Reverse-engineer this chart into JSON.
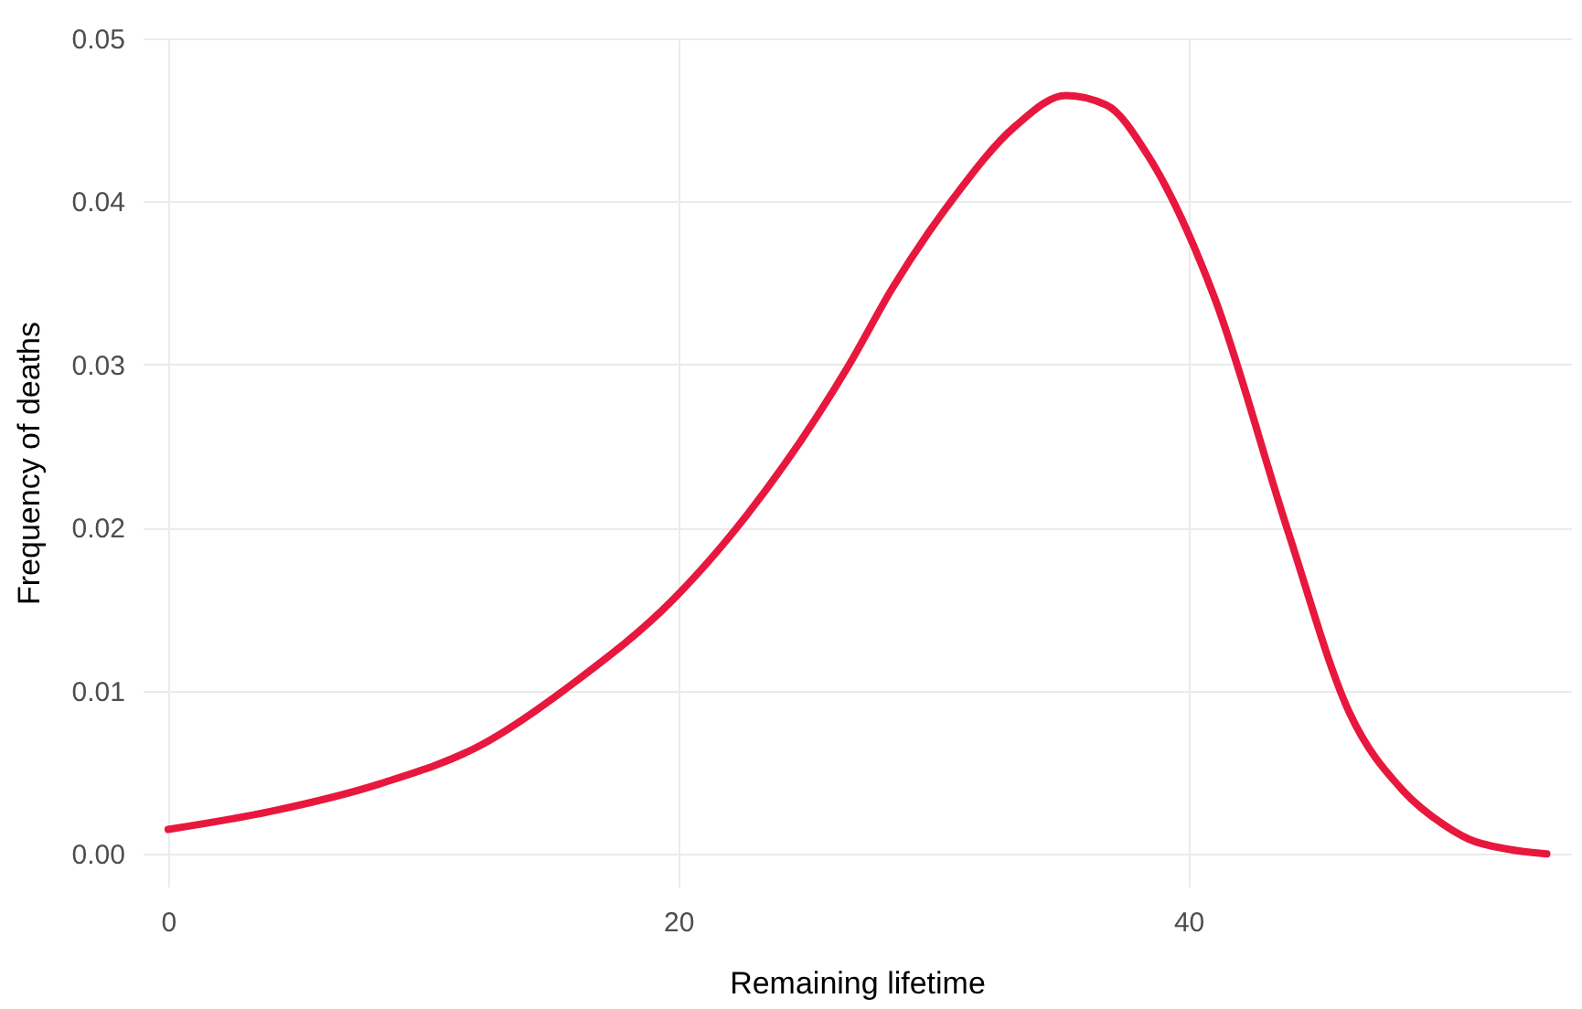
{
  "chart_data": {
    "type": "line",
    "xlabel": "Remaining lifetime",
    "ylabel": "Frequency of deaths",
    "series": [
      {
        "color": "#e8173d",
        "x": [
          0,
          4,
          8.3,
          12.3,
          16,
          19.8,
          22.7,
          26.7,
          28.4,
          30.74,
          33.2,
          35.2,
          36.8,
          38.38,
          41.0,
          43.9,
          46.3,
          48.4,
          50,
          51.0,
          52.5,
          54.05
        ],
        "values": [
          0.0015,
          0.0026,
          0.0043,
          0.0067,
          0.0106,
          0.0156,
          0.0208,
          0.03,
          0.0347,
          0.0401,
          0.0446,
          0.0465,
          0.0459,
          0.0429,
          0.0342,
          0.0198,
          0.0087,
          0.0039,
          0.0018,
          0.0009,
          0.0003,
          0.0
        ]
      }
    ],
    "xlim": [
      -1,
      55
    ],
    "ylim": [
      -0.002,
      0.05
    ],
    "xticks": [
      0,
      20,
      40
    ],
    "yticks": [
      {
        "value": 0,
        "label": "0.00"
      },
      {
        "value": 0.01,
        "label": "0.01"
      },
      {
        "value": 0.02,
        "label": "0.02"
      },
      {
        "value": 0.03,
        "label": "0.03"
      },
      {
        "value": 0.04,
        "label": "0.04"
      },
      {
        "value": 0.05,
        "label": "0.05"
      }
    ],
    "grid": true,
    "line_style": "solid",
    "marker": "none"
  }
}
